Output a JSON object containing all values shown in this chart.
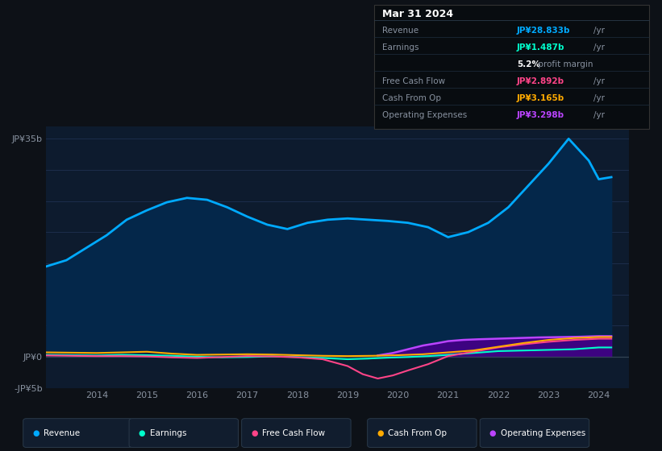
{
  "bg_color": "#0d1117",
  "plot_bg_color": "#0d1b2e",
  "grid_color": "#1e3050",
  "text_color": "#8892a0",
  "ylim": [
    -5,
    37
  ],
  "yticks": [
    -5,
    0,
    5,
    10,
    15,
    20,
    25,
    30,
    35
  ],
  "ytick_labels": [
    "-JP¥5b",
    "JP¥0",
    "",
    "",
    "",
    "",
    "",
    "",
    "JP¥35b"
  ],
  "xlim_start": 2013.0,
  "xlim_end": 2024.6,
  "xtick_years": [
    2014,
    2015,
    2016,
    2017,
    2018,
    2019,
    2020,
    2021,
    2022,
    2023,
    2024
  ],
  "revenue_color": "#00aaff",
  "revenue_fill_color": "#04274a",
  "earnings_color": "#00ffcc",
  "free_cashflow_color": "#ff4488",
  "cash_from_op_color": "#ffaa00",
  "op_expenses_color": "#bb44ff",
  "op_expenses_fill_color": "#440088",
  "revenue": {
    "years": [
      2013.0,
      2013.4,
      2013.8,
      2014.2,
      2014.6,
      2015.0,
      2015.4,
      2015.8,
      2016.2,
      2016.6,
      2017.0,
      2017.4,
      2017.8,
      2018.2,
      2018.6,
      2019.0,
      2019.4,
      2019.8,
      2020.2,
      2020.6,
      2021.0,
      2021.4,
      2021.8,
      2022.2,
      2022.6,
      2023.0,
      2023.4,
      2023.8,
      2024.0,
      2024.25
    ],
    "values": [
      14.5,
      15.5,
      17.5,
      19.5,
      22.0,
      23.5,
      24.8,
      25.5,
      25.2,
      24.0,
      22.5,
      21.2,
      20.5,
      21.5,
      22.0,
      22.2,
      22.0,
      21.8,
      21.5,
      20.8,
      19.2,
      20.0,
      21.5,
      24.0,
      27.5,
      31.0,
      35.0,
      31.5,
      28.5,
      28.833
    ]
  },
  "earnings": {
    "years": [
      2013.0,
      2013.5,
      2014.0,
      2014.5,
      2015.0,
      2015.5,
      2016.0,
      2016.5,
      2017.0,
      2017.5,
      2018.0,
      2018.5,
      2019.0,
      2019.4,
      2019.8,
      2020.2,
      2020.6,
      2021.0,
      2021.5,
      2022.0,
      2022.5,
      2023.0,
      2023.5,
      2024.0,
      2024.25
    ],
    "values": [
      0.3,
      0.25,
      0.2,
      0.3,
      0.25,
      0.15,
      0.0,
      -0.1,
      -0.05,
      0.05,
      -0.05,
      -0.2,
      -0.4,
      -0.3,
      -0.15,
      -0.05,
      0.1,
      0.3,
      0.6,
      0.9,
      1.0,
      1.1,
      1.2,
      1.487,
      1.487
    ]
  },
  "free_cashflow": {
    "years": [
      2013.0,
      2013.5,
      2014.0,
      2014.5,
      2015.0,
      2015.5,
      2016.0,
      2016.5,
      2017.0,
      2017.5,
      2018.0,
      2018.5,
      2019.0,
      2019.3,
      2019.6,
      2019.9,
      2020.2,
      2020.6,
      2021.0,
      2021.5,
      2022.0,
      2022.5,
      2023.0,
      2023.5,
      2024.0,
      2024.25
    ],
    "values": [
      0.2,
      0.15,
      0.1,
      0.1,
      0.05,
      -0.1,
      -0.2,
      -0.05,
      0.1,
      0.05,
      -0.1,
      -0.4,
      -1.5,
      -2.8,
      -3.5,
      -3.0,
      -2.2,
      -1.2,
      0.1,
      0.8,
      1.5,
      2.0,
      2.4,
      2.7,
      2.892,
      2.892
    ]
  },
  "cash_from_op": {
    "years": [
      2013.0,
      2013.5,
      2014.0,
      2014.5,
      2015.0,
      2015.5,
      2016.0,
      2016.5,
      2017.0,
      2017.5,
      2018.0,
      2018.5,
      2019.0,
      2019.5,
      2020.0,
      2020.5,
      2021.0,
      2021.5,
      2022.0,
      2022.5,
      2023.0,
      2023.5,
      2024.0,
      2024.25
    ],
    "values": [
      0.7,
      0.65,
      0.6,
      0.7,
      0.8,
      0.5,
      0.3,
      0.35,
      0.4,
      0.35,
      0.25,
      0.15,
      0.1,
      0.15,
      0.25,
      0.4,
      0.7,
      1.0,
      1.6,
      2.2,
      2.7,
      3.0,
      3.165,
      3.165
    ]
  },
  "op_expenses": {
    "years": [
      2019.6,
      2019.9,
      2020.2,
      2020.5,
      2020.8,
      2021.0,
      2021.3,
      2021.6,
      2022.0,
      2022.4,
      2022.8,
      2023.2,
      2023.6,
      2024.0,
      2024.25
    ],
    "values": [
      0.2,
      0.6,
      1.2,
      1.8,
      2.2,
      2.5,
      2.7,
      2.8,
      2.9,
      3.0,
      3.1,
      3.15,
      3.2,
      3.298,
      3.298
    ]
  },
  "info_box": {
    "date": "Mar 31 2024",
    "rows": [
      {
        "label": "Revenue",
        "value": "JP¥28.833b",
        "unit": "/yr",
        "color": "#00aaff"
      },
      {
        "label": "Earnings",
        "value": "JP¥1.487b",
        "unit": "/yr",
        "color": "#00ffcc"
      },
      {
        "label": "",
        "value": "5.2%",
        "unit": " profit margin",
        "color": "#ffffff",
        "bold_val": true
      },
      {
        "label": "Free Cash Flow",
        "value": "JP¥2.892b",
        "unit": "/yr",
        "color": "#ff4488"
      },
      {
        "label": "Cash From Op",
        "value": "JP¥3.165b",
        "unit": "/yr",
        "color": "#ffaa00"
      },
      {
        "label": "Operating Expenses",
        "value": "JP¥3.298b",
        "unit": "/yr",
        "color": "#bb44ff"
      }
    ]
  },
  "legend": [
    {
      "label": "Revenue",
      "color": "#00aaff"
    },
    {
      "label": "Earnings",
      "color": "#00ffcc"
    },
    {
      "label": "Free Cash Flow",
      "color": "#ff4488"
    },
    {
      "label": "Cash From Op",
      "color": "#ffaa00"
    },
    {
      "label": "Operating Expenses",
      "color": "#bb44ff"
    }
  ]
}
